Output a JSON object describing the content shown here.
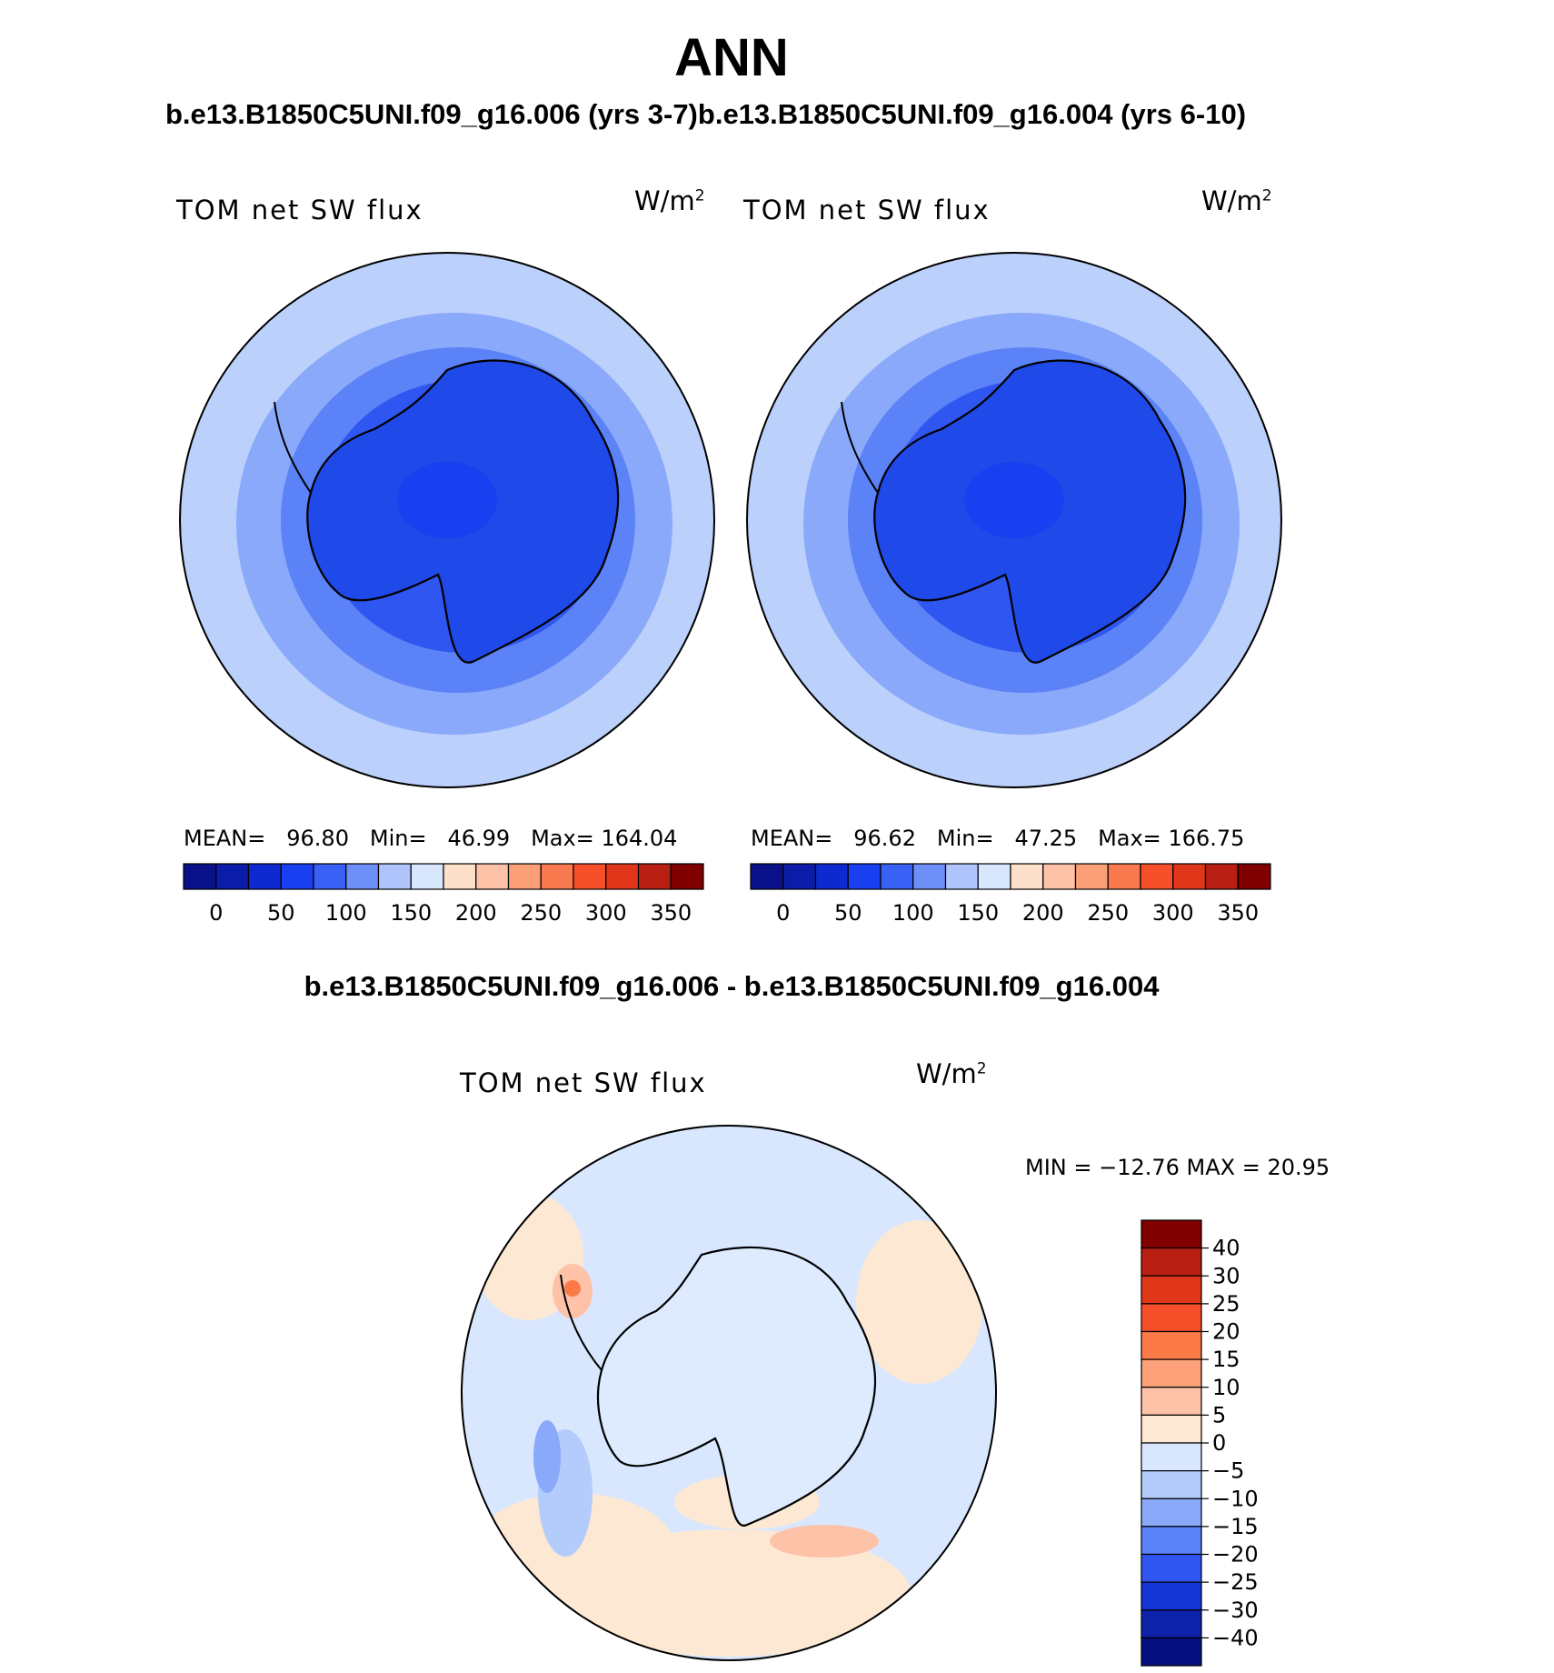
{
  "figure": {
    "title": "ANN",
    "subtitle_left": "b.e13.B1850C5UNI.f09_g16.006 (yrs 3-7)",
    "subtitle_right": "b.e13.B1850C5UNI.f09_g16.004 (yrs 6-10)",
    "diff_title": "b.e13.B1850C5UNI.f09_g16.006 - b.e13.B1850C5UNI.f09_g16.004"
  },
  "map_left": {
    "label": "TOM net SW flux",
    "units": "W/m",
    "units_exp": "2",
    "mean_label": "MEAN=",
    "mean": "96.80",
    "min_label": "Min=",
    "min": "46.99",
    "max_label": "Max=",
    "max": "164.04"
  },
  "map_right": {
    "label": "TOM net SW flux",
    "units": "W/m",
    "units_exp": "2",
    "mean_label": "MEAN=",
    "mean": "96.62",
    "min_label": "Min=",
    "min": "47.25",
    "max_label": "Max=",
    "max": "166.75"
  },
  "map_diff": {
    "label": "TOM net SW flux",
    "units": "W/m",
    "units_exp": "2",
    "minmax_text": "MIN = −12.76 MAX =   20.95"
  },
  "colorbar_abs": {
    "colors": [
      "#0a0f8a",
      "#0b1ca8",
      "#0d2ad0",
      "#1a3ff0",
      "#3a61f5",
      "#6d8ff8",
      "#aec4fb",
      "#d8e7fe",
      "#fde0ca",
      "#fdc2a8",
      "#fb9f79",
      "#f87a4e",
      "#f5502a",
      "#e0361a",
      "#b81e12",
      "#800000"
    ],
    "tick_labels": [
      "0",
      "50",
      "100",
      "150",
      "200",
      "250",
      "300",
      "350"
    ]
  },
  "colorbar_diff": {
    "colors": [
      "#800000",
      "#b81e12",
      "#e0361a",
      "#f5502a",
      "#fb7a48",
      "#fca17a",
      "#fdc2a8",
      "#fde8d4",
      "#d8e7fe",
      "#b4ccfc",
      "#8aa9fa",
      "#5b82f6",
      "#2f56f0",
      "#1436d4",
      "#0c22a8",
      "#070f80"
    ],
    "tick_labels": [
      "40",
      "30",
      "25",
      "20",
      "15",
      "10",
      "5",
      "0",
      "−5",
      "−10",
      "−15",
      "−20",
      "−25",
      "−30",
      "−40"
    ]
  }
}
